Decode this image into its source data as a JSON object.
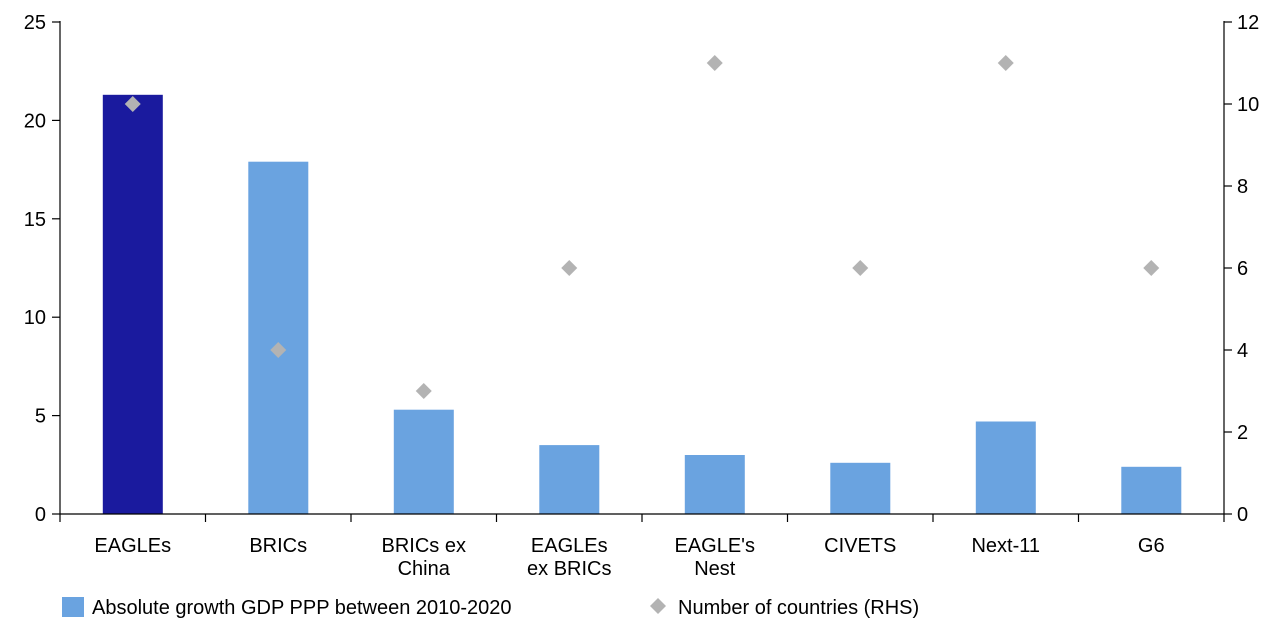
{
  "chart_data": {
    "type": "bar",
    "categories": [
      [
        "EAGLEs"
      ],
      [
        "BRICs"
      ],
      [
        "BRICs ex",
        "China"
      ],
      [
        "EAGLEs",
        "ex BRICs"
      ],
      [
        "EAGLE's",
        "Nest"
      ],
      [
        "CIVETS"
      ],
      [
        "Next-11"
      ],
      [
        "G6"
      ]
    ],
    "series": [
      {
        "name": "Absolute growth GDP PPP between 2010-2020",
        "kind": "bar",
        "axis": "left",
        "values": [
          21.3,
          17.9,
          5.3,
          3.5,
          3.0,
          2.6,
          4.7,
          2.4
        ],
        "colors": [
          "#1a1a9e",
          "#6aa3e0",
          "#6aa3e0",
          "#6aa3e0",
          "#6aa3e0",
          "#6aa3e0",
          "#6aa3e0",
          "#6aa3e0"
        ]
      },
      {
        "name": "Number of countries (RHS)",
        "kind": "marker",
        "axis": "right",
        "values": [
          10,
          4,
          3,
          6,
          11,
          6,
          11,
          6
        ],
        "color": "#b3b3b3"
      }
    ],
    "ylim": [
      0,
      25
    ],
    "yticks": [
      "0",
      "5",
      "10",
      "15",
      "20",
      "25"
    ],
    "y2lim": [
      0,
      12
    ],
    "y2ticks": [
      "0",
      "2",
      "4",
      "6",
      "8",
      "10",
      "12"
    ],
    "grid": false,
    "legend_position": "bottom-left"
  }
}
